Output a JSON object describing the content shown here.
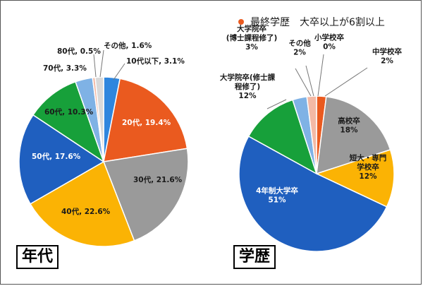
{
  "chart_data": [
    {
      "type": "pie",
      "title": "",
      "box_label": "年代",
      "slices": [
        {
          "label": "10代以下",
          "value": 3.1,
          "display": "10代以下, 3.1%",
          "color": "#2e86de"
        },
        {
          "label": "20代",
          "value": 19.4,
          "display": "20代, 19.4%",
          "color": "#ea5a1f"
        },
        {
          "label": "30代",
          "value": 21.6,
          "display": "30代, 21.6%",
          "color": "#9a9a9a"
        },
        {
          "label": "40代",
          "value": 22.6,
          "display": "40代, 22.6%",
          "color": "#fbb304"
        },
        {
          "label": "50代",
          "value": 17.6,
          "display": "50代, 17.6%",
          "color": "#1f5fbf"
        },
        {
          "label": "60代",
          "value": 10.3,
          "display": "60代, 10.3%",
          "color": "#17a03a"
        },
        {
          "label": "70代",
          "value": 3.3,
          "display": "70代, 3.3%",
          "color": "#7fb2e5"
        },
        {
          "label": "80代",
          "value": 0.5,
          "display": "80代, 0.5%",
          "color": "#f3b9a5"
        },
        {
          "label": "その他",
          "value": 1.6,
          "display": "その他, 1.6%",
          "color": "#d9d9d9"
        }
      ]
    },
    {
      "type": "pie",
      "title": "最終学歴　大卒以上が6割以上",
      "box_label": "学歴",
      "slices": [
        {
          "label": "中学校卒",
          "value": 2,
          "display": [
            "中学校卒",
            "2%"
          ],
          "color": "#ea5a1f"
        },
        {
          "label": "高校卒",
          "value": 18,
          "display": [
            "高校卒",
            "18%"
          ],
          "color": "#9a9a9a"
        },
        {
          "label": "短大・専門学校卒",
          "value": 12,
          "display": [
            "短大・専門",
            "学校卒",
            "12%"
          ],
          "color": "#fbb304"
        },
        {
          "label": "4年制大学卒",
          "value": 51,
          "display": [
            "4年制大学卒",
            "51%"
          ],
          "color": "#1f5fbf"
        },
        {
          "label": "大学院卒(修士課程修了)",
          "value": 12,
          "display": [
            "大学院卒(修士課",
            "程修了)",
            "12%"
          ],
          "color": "#17a03a"
        },
        {
          "label": "大学院卒(博士課程修了)",
          "value": 3,
          "display": [
            "大学院卒",
            "(博士課程修了)",
            "3%"
          ],
          "color": "#7fb2e5"
        },
        {
          "label": "その他",
          "value": 2,
          "display": [
            "その他",
            "2%"
          ],
          "color": "#f3b9a5"
        },
        {
          "label": "小学校卒",
          "value": 0,
          "display": [
            "小学校卒",
            "0%"
          ],
          "color": "#e0e0e0"
        }
      ]
    }
  ]
}
